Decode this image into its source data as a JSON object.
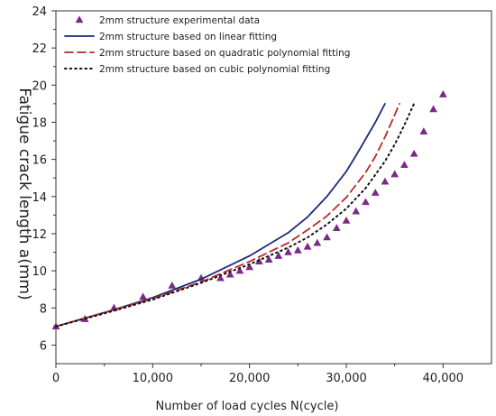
{
  "chart_data": {
    "type": "line",
    "title": "",
    "xlabel": "Number of load cycles N(cycle)",
    "ylabel": "Fatigue crack length a(mm)",
    "xlim": [
      0,
      45000
    ],
    "ylim": [
      5,
      24
    ],
    "x_ticks": [
      0,
      10000,
      20000,
      30000,
      40000
    ],
    "x_tick_labels": [
      "0",
      "10,000",
      "20,000",
      "30,000",
      "40,000"
    ],
    "y_ticks": [
      6,
      8,
      10,
      12,
      14,
      16,
      18,
      20,
      22,
      24
    ],
    "y_tick_labels": [
      "6",
      "8",
      "10",
      "12",
      "14",
      "16",
      "18",
      "20",
      "22",
      "24"
    ],
    "grid": false,
    "legend_position": "top-left",
    "series": [
      {
        "name": "2mm structure experimental data",
        "kind": "scatter",
        "marker": "triangle",
        "color": "#7a2a86",
        "x": [
          0,
          3000,
          6000,
          9000,
          12000,
          15000,
          17000,
          18000,
          19000,
          20000,
          21000,
          22000,
          23000,
          24000,
          25000,
          26000,
          27000,
          28000,
          29000,
          30000,
          31000,
          32000,
          33000,
          34000,
          35000,
          36000,
          37000,
          38000,
          39000,
          40000
        ],
        "y": [
          7.0,
          7.4,
          8.0,
          8.6,
          9.2,
          9.6,
          9.6,
          9.8,
          10.0,
          10.2,
          10.5,
          10.6,
          10.8,
          11.0,
          11.1,
          11.3,
          11.5,
          11.8,
          12.3,
          12.7,
          13.2,
          13.7,
          14.2,
          14.8,
          15.2,
          15.7,
          16.3,
          17.5,
          18.7,
          19.5
        ]
      },
      {
        "name": "2mm structure based on linear fitting",
        "kind": "line",
        "dash": "solid",
        "color": "#1f2a7a",
        "x": [
          0,
          5000,
          10000,
          15000,
          20000,
          24000,
          26000,
          28000,
          30000,
          31000,
          32000,
          33000,
          34000
        ],
        "y": [
          7.0,
          7.75,
          8.55,
          9.55,
          10.8,
          12.05,
          12.9,
          14.0,
          15.35,
          16.2,
          17.1,
          18.0,
          19.0
        ]
      },
      {
        "name": "2mm structure based on quadratic polynomial fitting",
        "kind": "line",
        "dash": "dashed",
        "color": "#b52a2a",
        "x": [
          0,
          5000,
          10000,
          15000,
          20000,
          24000,
          26000,
          28000,
          30000,
          32000,
          33000,
          34000,
          35000,
          35500
        ],
        "y": [
          7.0,
          7.75,
          8.5,
          9.4,
          10.5,
          11.5,
          12.2,
          12.95,
          13.95,
          15.3,
          16.15,
          17.2,
          18.4,
          19.0
        ]
      },
      {
        "name": "2mm structure based on cubic polynomial fitting",
        "kind": "line",
        "dash": "dotted",
        "color": "#111111",
        "x": [
          0,
          5000,
          10000,
          15000,
          20000,
          24000,
          26000,
          28000,
          30000,
          32000,
          34000,
          35000,
          36000,
          37000
        ],
        "y": [
          7.0,
          7.7,
          8.45,
          9.35,
          10.35,
          11.25,
          11.8,
          12.5,
          13.35,
          14.45,
          15.9,
          16.8,
          17.85,
          19.0
        ]
      }
    ]
  }
}
